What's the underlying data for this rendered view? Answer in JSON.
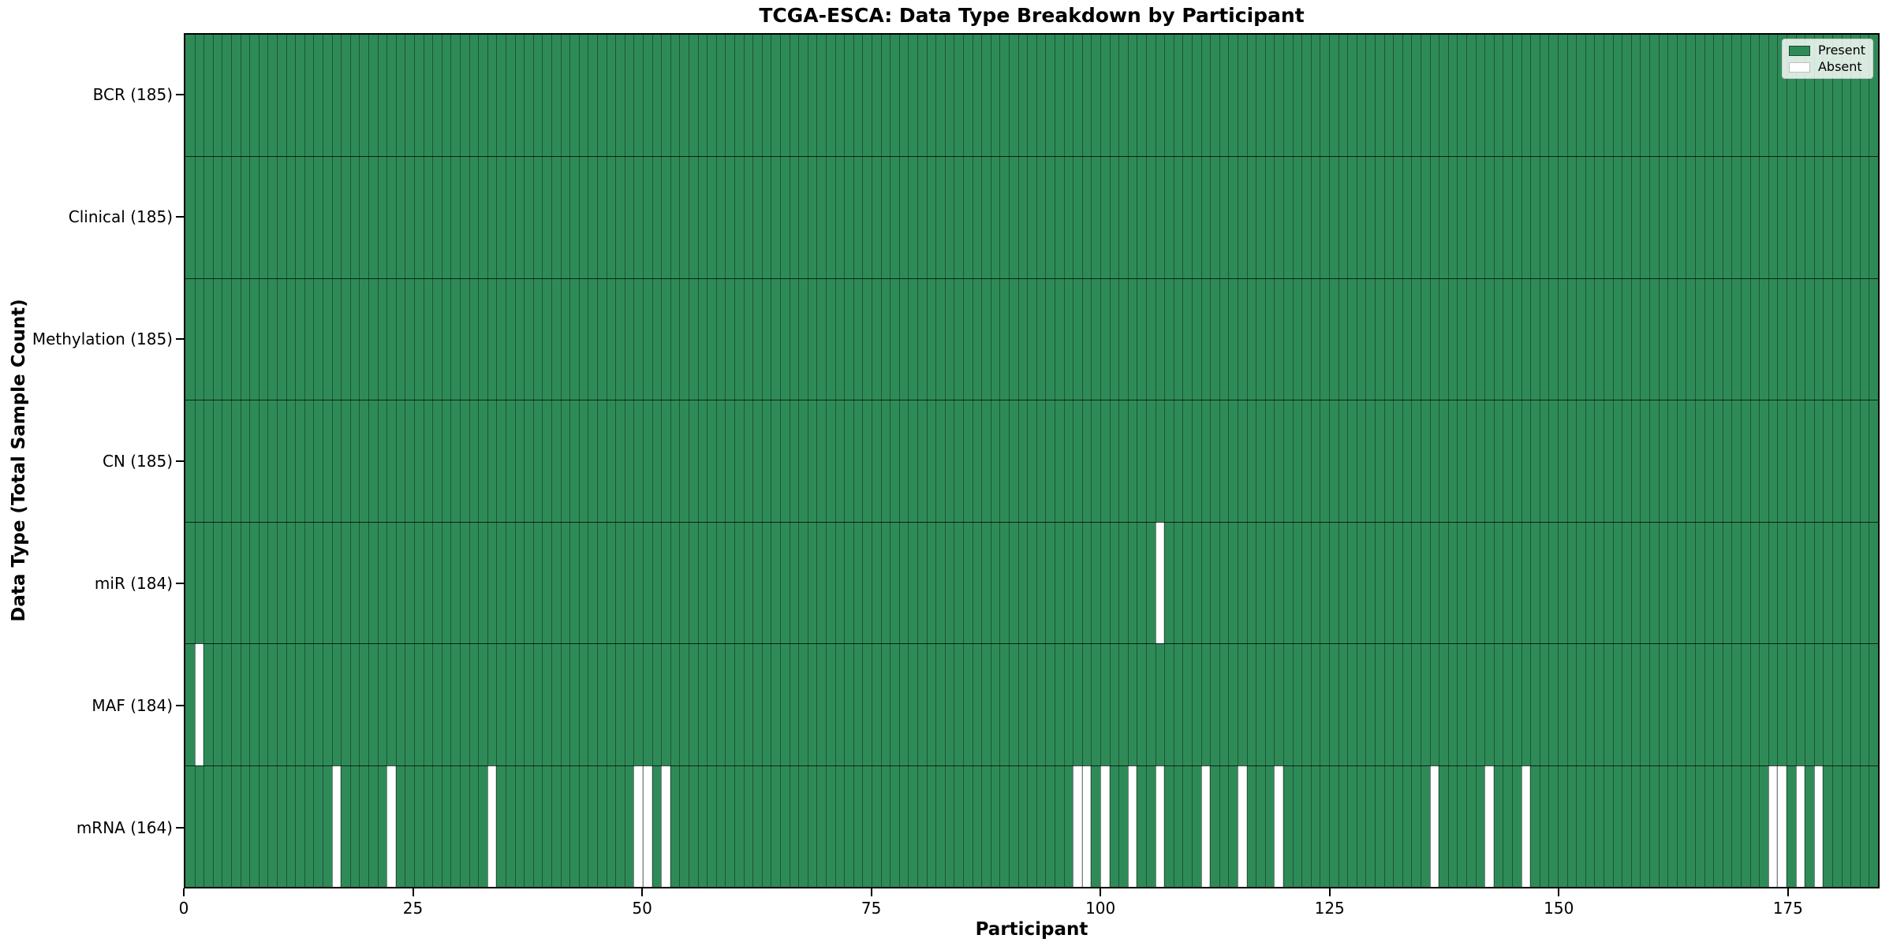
{
  "chart_data": {
    "type": "heatmap",
    "title": "TCGA-ESCA: Data Type Breakdown by Participant",
    "xlabel": "Participant",
    "ylabel": "Data Type (Total Sample Count)",
    "n_participants": 185,
    "xlim": [
      0,
      185
    ],
    "x_ticks": [
      0,
      25,
      50,
      75,
      100,
      125,
      150,
      175
    ],
    "grid": false,
    "legend_position": "upper right",
    "legend": [
      {
        "label": "Present",
        "color": "#2e8b57"
      },
      {
        "label": "Absent",
        "color": "#ffffff"
      }
    ],
    "colors": {
      "present": "#2e8b57",
      "absent": "#ffffff",
      "cell_edge": "rgba(0,0,0,0.38)",
      "row_divider": "rgba(0,0,0,0.75)",
      "axis": "#000000"
    },
    "rows": [
      {
        "label": "BCR (185)",
        "data_type": "BCR",
        "present_count": 185,
        "absent_participants": []
      },
      {
        "label": "Clinical (185)",
        "data_type": "Clinical",
        "present_count": 185,
        "absent_participants": []
      },
      {
        "label": "Methylation (185)",
        "data_type": "Methylation",
        "present_count": 185,
        "absent_participants": []
      },
      {
        "label": "CN (185)",
        "data_type": "CN",
        "present_count": 185,
        "absent_participants": []
      },
      {
        "label": "miR (184)",
        "data_type": "miR",
        "present_count": 184,
        "absent_participants": [
          106
        ]
      },
      {
        "label": "MAF (184)",
        "data_type": "MAF",
        "present_count": 184,
        "absent_participants": [
          1
        ]
      },
      {
        "label": "mRNA (164)",
        "data_type": "mRNA",
        "present_count": 164,
        "absent_participants": [
          16,
          22,
          33,
          49,
          50,
          52,
          97,
          98,
          100,
          103,
          106,
          111,
          115,
          119,
          136,
          142,
          146,
          173,
          174,
          176,
          178
        ]
      }
    ]
  }
}
